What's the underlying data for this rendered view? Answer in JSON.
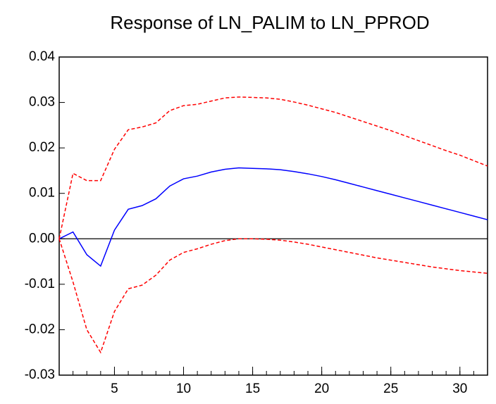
{
  "chart_data": {
    "type": "line",
    "title": "Response of  LN_PALIM to LN_PPROD",
    "x": [
      1,
      2,
      3,
      4,
      5,
      6,
      7,
      8,
      9,
      10,
      11,
      12,
      13,
      14,
      15,
      16,
      17,
      18,
      19,
      20,
      21,
      22,
      23,
      24,
      25,
      26,
      27,
      28,
      29,
      30,
      31,
      32
    ],
    "xlim": [
      1,
      32
    ],
    "xticks": [
      5,
      10,
      15,
      20,
      25,
      30
    ],
    "ylim": [
      -0.03,
      0.04
    ],
    "yticks": [
      0.04,
      0.03,
      0.02,
      0.01,
      {
        "value": 0,
        "label": "0.00"
      },
      -0.01,
      -0.02,
      -0.03
    ],
    "zero_line": true,
    "series": [
      {
        "color": "#0000ff",
        "dashed": false,
        "values": [
          0,
          0.0015,
          -0.0035,
          -0.006,
          0.0019,
          0.0065,
          0.0073,
          0.0088,
          0.0116,
          0.0132,
          0.0138,
          0.0147,
          0.0153,
          0.0156,
          0.0155,
          0.0154,
          0.0152,
          0.0148,
          0.0143,
          0.0137,
          0.013,
          0.0122,
          0.0114,
          0.0106,
          0.0098,
          0.009,
          0.0082,
          0.0074,
          0.0066,
          0.0058,
          0.005,
          0.0042
        ]
      },
      {
        "color": "#ff0000",
        "dashed": true,
        "values": [
          0,
          0.0144,
          0.0128,
          0.0128,
          0.0197,
          0.024,
          0.0246,
          0.0255,
          0.0282,
          0.0293,
          0.0296,
          0.0303,
          0.031,
          0.0312,
          0.0311,
          0.031,
          0.0307,
          0.0301,
          0.0294,
          0.0286,
          0.0278,
          0.0268,
          0.0258,
          0.0248,
          0.0238,
          0.0227,
          0.0216,
          0.0205,
          0.0194,
          0.0184,
          0.0172,
          0.016
        ]
      },
      {
        "color": "#ff0000",
        "dashed": true,
        "values": [
          0,
          -0.0095,
          -0.02,
          -0.025,
          -0.016,
          -0.011,
          -0.0102,
          -0.008,
          -0.0047,
          -0.003,
          -0.0022,
          -0.0012,
          -0.0004,
          0,
          0,
          -0.0001,
          -0.0003,
          -0.0007,
          -0.0012,
          -0.0018,
          -0.0024,
          -0.003,
          -0.0036,
          -0.0042,
          -0.0047,
          -0.0052,
          -0.0057,
          -0.0062,
          -0.0066,
          -0.007,
          -0.0073,
          -0.0076
        ]
      }
    ]
  }
}
